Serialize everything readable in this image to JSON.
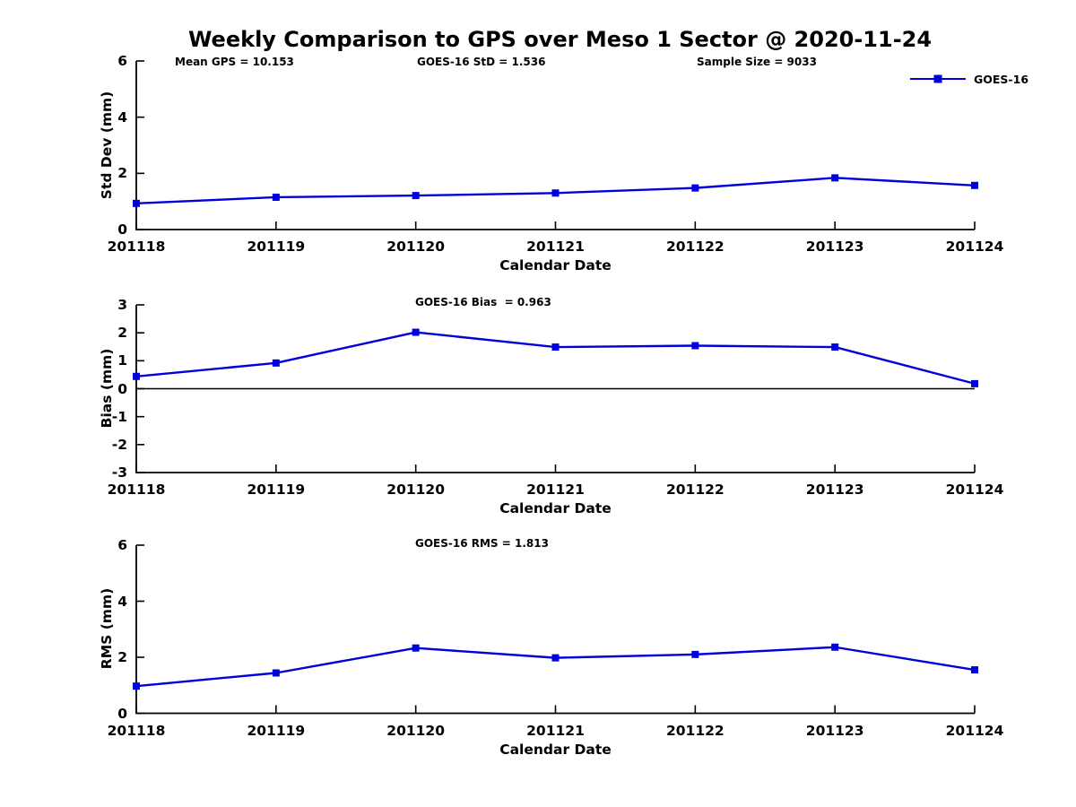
{
  "title": "Weekly Comparison to GPS over Meso 1 Sector @ 2020-11-24",
  "legend": {
    "label": "GOES-16",
    "color": "#0000dd",
    "marker": "square"
  },
  "chart_data": [
    {
      "type": "line",
      "subplot": "std-dev",
      "categories": [
        "201118",
        "201119",
        "201120",
        "201121",
        "201122",
        "201123",
        "201124"
      ],
      "series": [
        {
          "name": "GOES-16",
          "color": "#0000dd",
          "marker": "square",
          "values": [
            0.93,
            1.15,
            1.21,
            1.3,
            1.48,
            1.84,
            1.57
          ]
        }
      ],
      "xlabel": "Calendar Date",
      "ylabel": "Std Dev (mm)",
      "ylim": [
        0,
        6
      ],
      "yticks": [
        0,
        2,
        4,
        6
      ],
      "grid": false,
      "legend_position": "top-right",
      "annotations": [
        "Mean GPS = 10.153",
        "GOES-16 StD = 1.536",
        "Sample Size = 9033"
      ]
    },
    {
      "type": "line",
      "subplot": "bias",
      "categories": [
        "201118",
        "201119",
        "201120",
        "201121",
        "201122",
        "201123",
        "201124"
      ],
      "series": [
        {
          "name": "GOES-16",
          "color": "#0000dd",
          "marker": "square",
          "values": [
            0.44,
            0.92,
            2.02,
            1.49,
            1.54,
            1.49,
            0.18
          ]
        }
      ],
      "xlabel": "Calendar Date",
      "ylabel": "Bias (mm)",
      "ylim": [
        -3,
        3
      ],
      "yticks": [
        3,
        2,
        1,
        0,
        -1,
        -2,
        -3
      ],
      "zero_line": true,
      "grid": false,
      "annotations": [
        "GOES-16 Bias  = 0.963"
      ]
    },
    {
      "type": "line",
      "subplot": "rms",
      "categories": [
        "201118",
        "201119",
        "201120",
        "201121",
        "201122",
        "201123",
        "201124"
      ],
      "series": [
        {
          "name": "GOES-16",
          "color": "#0000dd",
          "marker": "square",
          "values": [
            0.97,
            1.44,
            2.33,
            1.98,
            2.1,
            2.36,
            1.55
          ]
        }
      ],
      "xlabel": "Calendar Date",
      "ylabel": "RMS (mm)",
      "ylim": [
        0,
        6
      ],
      "yticks": [
        0,
        2,
        4,
        6
      ],
      "grid": false,
      "annotations": [
        "GOES-16 RMS = 1.813"
      ]
    }
  ]
}
